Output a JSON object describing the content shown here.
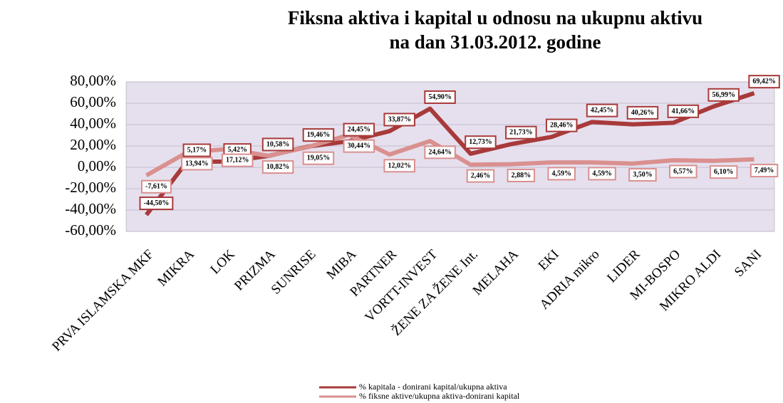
{
  "chart_data": {
    "type": "line",
    "title": "Fiksna aktiva i kapital u odnosu na ukupnu aktivu",
    "subtitle": "na dan 31.03.2012. godine",
    "categories": [
      "PRVA ISLAMSKA MKF",
      "MIKRA",
      "LOK",
      "PRIZMA",
      "SUNRISE",
      "MIBA",
      "PARTNER",
      "VORTT-INVEST",
      "ŽENE ZA ŽENE Int.",
      "MELAHA",
      "EKI",
      "ADRIA mikro",
      "LIDER",
      "MI-BOSPO",
      "MIKRO ALDI",
      "SANI"
    ],
    "series": [
      {
        "name": "% kapitala - donirani kapital/ukupna aktiva",
        "color": "#a83a3a",
        "values": [
          -44.5,
          5.17,
          5.42,
          10.58,
          19.46,
          24.45,
          33.87,
          54.9,
          12.73,
          21.73,
          28.46,
          42.45,
          40.26,
          41.66,
          56.99,
          69.42
        ],
        "value_labels": [
          "-44,50%",
          "5,17%",
          "5,42%",
          "10,58%",
          "19,46%",
          "24,45%",
          "33,87%",
          "54,90%",
          "12,73%",
          "21,73%",
          "28,46%",
          "42,45%",
          "40,26%",
          "41,66%",
          "56,99%",
          "69,42%"
        ]
      },
      {
        "name": "% fiksne aktive/ukupna aktiva-donirani kapital",
        "color": "#d9908f",
        "values": [
          -7.61,
          13.94,
          17.12,
          10.82,
          19.05,
          30.44,
          12.02,
          24.64,
          2.46,
          2.88,
          4.59,
          4.59,
          3.5,
          6.57,
          6.1,
          7.49
        ],
        "value_labels": [
          "-7,61%",
          "13,94%",
          "17,12%",
          "10,82%",
          "19,05%",
          "30,44%",
          "12,02%",
          "24,64%",
          "2,46%",
          "2,88%",
          "4,59%",
          "4,59%",
          "3,50%",
          "6,57%",
          "6,10%",
          "7,49%"
        ]
      }
    ],
    "ylim": [
      -60,
      80
    ],
    "yticks": [
      {
        "value": -60,
        "label": "-60,00%"
      },
      {
        "value": -40,
        "label": "-40,00%"
      },
      {
        "value": -20,
        "label": "-20,00%"
      },
      {
        "value": 0,
        "label": "0,00%"
      },
      {
        "value": 20,
        "label": "20,00%"
      },
      {
        "value": 40,
        "label": "40,00%"
      },
      {
        "value": 60,
        "label": "60,00%"
      },
      {
        "value": 80,
        "label": "80,00%"
      }
    ],
    "grid": true,
    "plot_background": "#e6e0ee",
    "legend": "bottom"
  }
}
